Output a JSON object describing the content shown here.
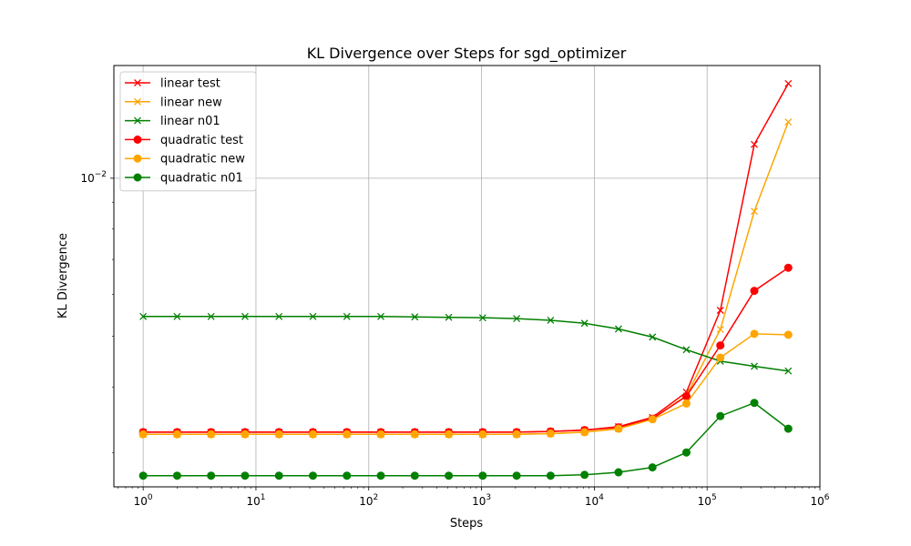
{
  "chart_data": {
    "type": "line",
    "title": "KL Divergence over Steps for sgd_optimizer",
    "xlabel": "Steps",
    "ylabel": "KL Divergence",
    "xscale": "log",
    "yscale": "log",
    "xlim": [
      0.55,
      1000000
    ],
    "ylim": [
      0.00258,
      0.0164
    ],
    "grid": true,
    "legend_position": "top-left",
    "x_ticks": [
      {
        "value": 1,
        "base": "10",
        "exp": "0"
      },
      {
        "value": 10,
        "base": "10",
        "exp": "1"
      },
      {
        "value": 100,
        "base": "10",
        "exp": "2"
      },
      {
        "value": 1000,
        "base": "10",
        "exp": "3"
      },
      {
        "value": 10000,
        "base": "10",
        "exp": "4"
      },
      {
        "value": 100000,
        "base": "10",
        "exp": "5"
      },
      {
        "value": 1000000,
        "base": "10",
        "exp": "6"
      }
    ],
    "y_ticks": [
      {
        "value": 0.01,
        "base": "10",
        "exp": "−2"
      }
    ],
    "x": [
      1,
      2,
      4,
      8,
      16,
      32,
      64,
      128,
      256,
      512,
      1024,
      2048,
      4096,
      8192,
      16384,
      32768,
      65536,
      131072,
      262144,
      524288
    ],
    "series": [
      {
        "name": "linear test",
        "color": "#ff0000",
        "marker": "x",
        "values": [
          0.00328,
          0.00328,
          0.00328,
          0.00328,
          0.00328,
          0.00328,
          0.00328,
          0.00328,
          0.00328,
          0.00328,
          0.00328,
          0.00328,
          0.00329,
          0.00331,
          0.00336,
          0.0035,
          0.00391,
          0.0056,
          0.0116,
          0.01515
        ]
      },
      {
        "name": "linear new",
        "color": "#ffa500",
        "marker": "x",
        "values": [
          0.00325,
          0.00325,
          0.00325,
          0.00325,
          0.00325,
          0.00325,
          0.00325,
          0.00325,
          0.00325,
          0.00325,
          0.00325,
          0.00325,
          0.00326,
          0.00328,
          0.00333,
          0.00348,
          0.00385,
          0.00515,
          0.00865,
          0.0128
        ]
      },
      {
        "name": "linear n01",
        "color": "#008000",
        "marker": "x",
        "values": [
          0.00545,
          0.00545,
          0.00545,
          0.00545,
          0.00545,
          0.00545,
          0.00545,
          0.00545,
          0.00544,
          0.00543,
          0.00542,
          0.0054,
          0.00536,
          0.00529,
          0.00516,
          0.00498,
          0.00471,
          0.00448,
          0.00438,
          0.00429
        ]
      },
      {
        "name": "quadratic test",
        "color": "#ff0000",
        "marker": "o",
        "values": [
          0.00328,
          0.00328,
          0.00328,
          0.00328,
          0.00328,
          0.00328,
          0.00328,
          0.00328,
          0.00328,
          0.00328,
          0.00328,
          0.00328,
          0.00329,
          0.00331,
          0.00335,
          0.00348,
          0.00384,
          0.0048,
          0.0061,
          0.00675
        ]
      },
      {
        "name": "quadratic new",
        "color": "#ffa500",
        "marker": "o",
        "values": [
          0.00325,
          0.00325,
          0.00325,
          0.00325,
          0.00325,
          0.00325,
          0.00325,
          0.00325,
          0.00325,
          0.00325,
          0.00325,
          0.00325,
          0.00326,
          0.00328,
          0.00333,
          0.00347,
          0.00372,
          0.00455,
          0.00505,
          0.00503
        ]
      },
      {
        "name": "quadratic n01",
        "color": "#008000",
        "marker": "o",
        "values": [
          0.00271,
          0.00271,
          0.00271,
          0.00271,
          0.00271,
          0.00271,
          0.00271,
          0.00271,
          0.00271,
          0.00271,
          0.00271,
          0.00271,
          0.00271,
          0.00272,
          0.00275,
          0.00281,
          0.003,
          0.00352,
          0.00373,
          0.00333
        ]
      }
    ]
  }
}
